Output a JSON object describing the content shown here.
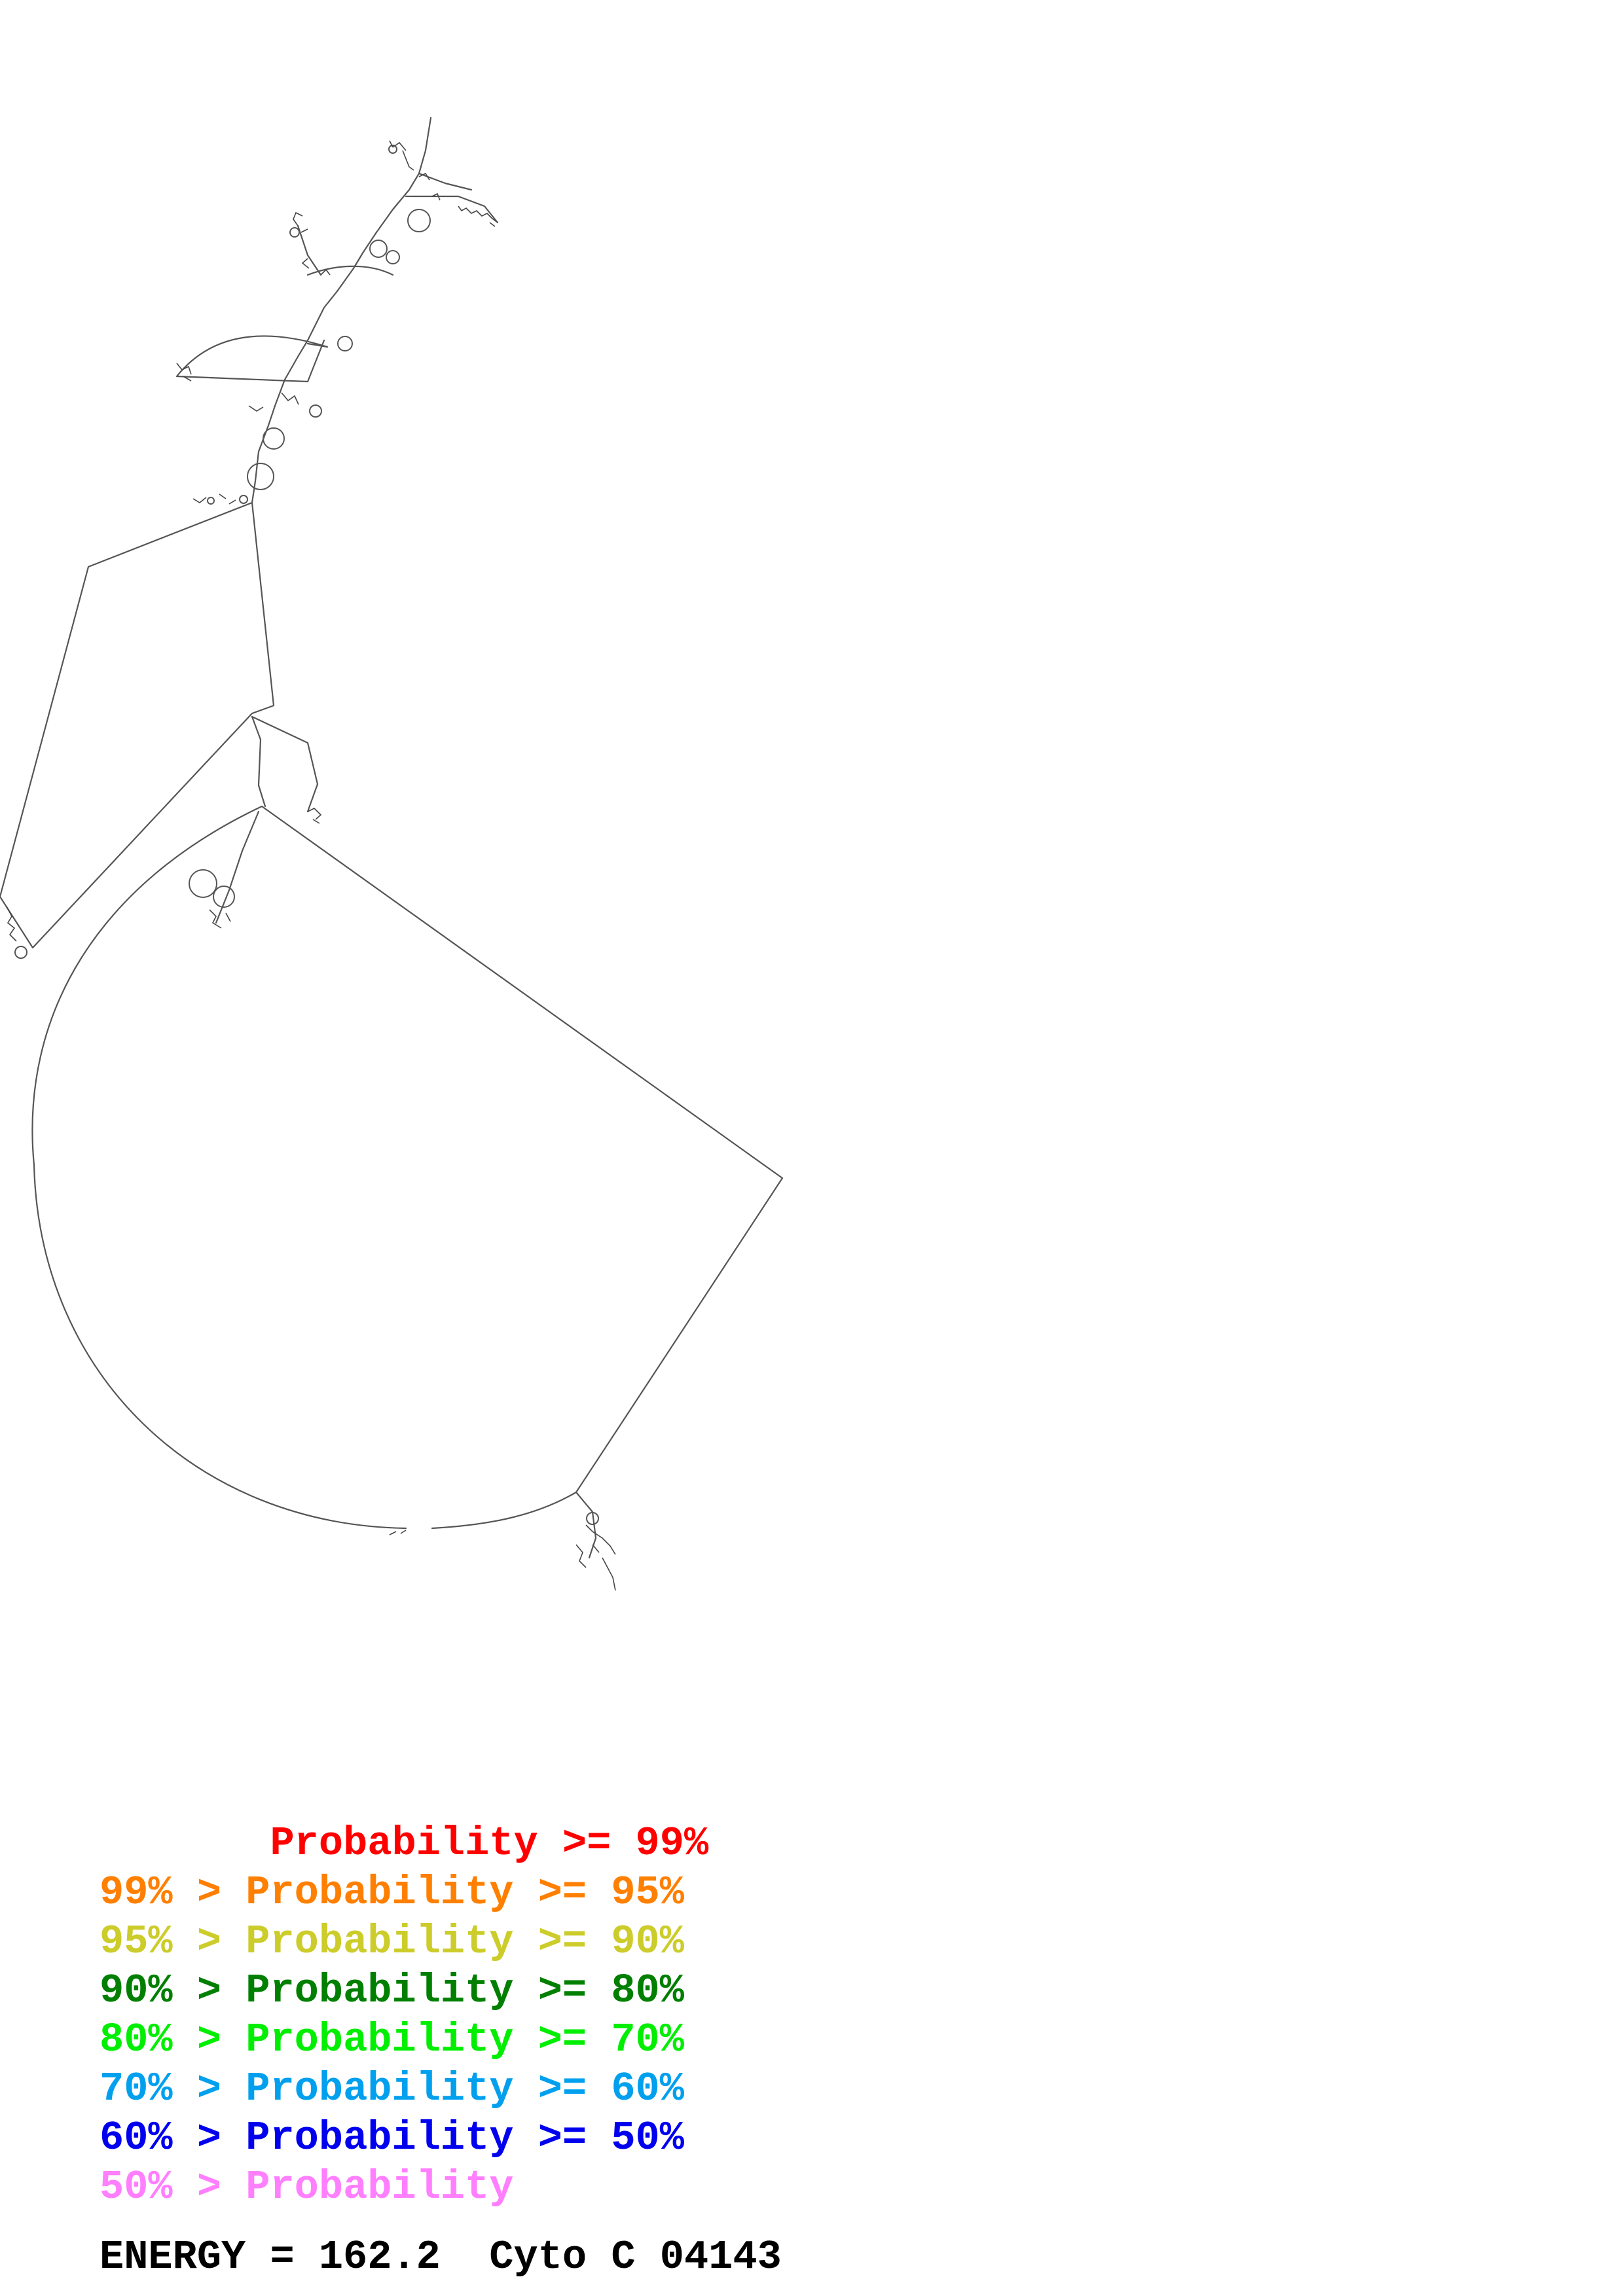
{
  "legend": [
    {
      "prefix": "       ",
      "label": "Probability >= 99%",
      "color": "#ff0000"
    },
    {
      "prefix": "99% > ",
      "label": "Probability >= 95%",
      "color": "#ff7f00"
    },
    {
      "prefix": "95% > ",
      "label": "Probability >= 90%",
      "color": "#cccc2a"
    },
    {
      "prefix": "90% > ",
      "label": "Probability >= 80%",
      "color": "#007f00"
    },
    {
      "prefix": "80% > ",
      "label": "Probability >= 70%",
      "color": "#00ee00"
    },
    {
      "prefix": "70% > ",
      "label": "Probability >= 60%",
      "color": "#00a0ee"
    },
    {
      "prefix": "60% > ",
      "label": "Probability >= 50%",
      "color": "#0000ee"
    },
    {
      "prefix": "50% > ",
      "label": "Probability",
      "color": "#ff7fff"
    }
  ],
  "footer": {
    "energy_text": "ENERGY = 162.2  Cyto C 04143"
  },
  "structure": {
    "line_color": "#555555",
    "background": "#ffffff"
  }
}
